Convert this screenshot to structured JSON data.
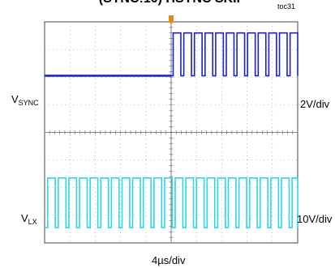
{
  "header": {
    "title": "(SYNC:10) HSYNC SKIP",
    "toc": "toc31"
  },
  "labels": {
    "vsync_main": "V",
    "vsync_sub": "SYNC",
    "vlx_main": "V",
    "vlx_sub": "LX",
    "vsync_scale": "2V/div",
    "vlx_scale": "10V/div",
    "time_scale": "4µs/div"
  },
  "colors": {
    "vsync": "#1a22c8",
    "vlx": "#2fd6e6",
    "grid": "#888888",
    "trigger": "#e08a1e"
  },
  "chart_data": {
    "type": "line",
    "title": "(SYNC:10) HSYNC SKIP",
    "x_divisions": 10,
    "y_divisions": 8,
    "grid": true,
    "time_per_div": "4µs/div",
    "trigger_div": 5,
    "series": [
      {
        "name": "VSYNC",
        "scale": "2V/div",
        "low_div": 6.05,
        "high_div": 7.6,
        "idle_until_div": 5,
        "pulses_start_div": 5.08,
        "period_div": 0.42,
        "duty": 0.72
      },
      {
        "name": "VLX",
        "scale": "10V/div",
        "low_div": 0.55,
        "high_div": 2.35,
        "pulses_start_div": 0.12,
        "period_div": 0.42,
        "duty": 0.72
      }
    ]
  }
}
